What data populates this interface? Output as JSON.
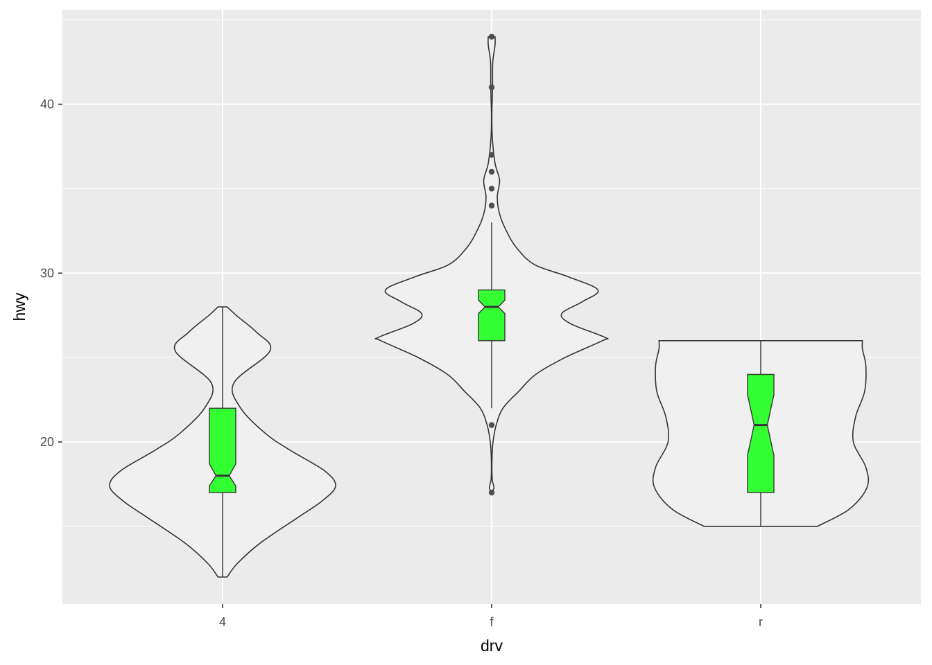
{
  "chart_data": {
    "type": "violin",
    "xlabel": "drv",
    "ylabel": "hwy",
    "categories": [
      "4",
      "f",
      "r"
    ],
    "y_ticks": [
      "20",
      "30",
      "40"
    ],
    "y_tick_values": [
      20,
      30,
      40
    ],
    "ylim": [
      10.4,
      45.6
    ],
    "grid": true,
    "notched_boxplot": true,
    "colors": {
      "panel_background": "#ebebeb",
      "grid": "#ffffff",
      "violin_fill": "#f0f0f0",
      "violin_outline": "#333333",
      "box_fill": "#33ff33",
      "outlier": "#4d4d4d",
      "tick_text": "#4d4d4d",
      "title_text": "#000000"
    },
    "groups": [
      {
        "category": "4",
        "boxplot": {
          "min": 12,
          "q1": 17,
          "median": 18,
          "q3": 22,
          "max": 28,
          "notch_low": 17.4,
          "notch_high": 18.7
        },
        "outliers": [],
        "violin_width_profile": [
          [
            12,
            0.04
          ],
          [
            12.8,
            0.13
          ],
          [
            14,
            0.33
          ],
          [
            15.5,
            0.66
          ],
          [
            16.5,
            0.88
          ],
          [
            17.4,
            1.0
          ],
          [
            18.3,
            0.9
          ],
          [
            19.5,
            0.6
          ],
          [
            20.5,
            0.38
          ],
          [
            22,
            0.16
          ],
          [
            23.5,
            0.1
          ],
          [
            25.4,
            0.42
          ],
          [
            26.5,
            0.3
          ],
          [
            27.5,
            0.12
          ],
          [
            28,
            0.04
          ]
        ]
      },
      {
        "category": "f",
        "boxplot": {
          "min": 21,
          "q1": 26,
          "median": 28,
          "q3": 29,
          "max": 33,
          "notch_low": 27.6,
          "notch_high": 28.4
        },
        "whisker_low_end": 22,
        "outliers": [
          17,
          21,
          34,
          35,
          36,
          37,
          41,
          44
        ],
        "violin_width_profile": [
          [
            17,
            0.0
          ],
          [
            17.3,
            0.02
          ],
          [
            17.8,
            0.005
          ],
          [
            19,
            0.003
          ],
          [
            20,
            0.012
          ],
          [
            21,
            0.04
          ],
          [
            22,
            0.1
          ],
          [
            23,
            0.24
          ],
          [
            24,
            0.39
          ],
          [
            25,
            0.65
          ],
          [
            26,
            0.98
          ],
          [
            26.2,
            1.0
          ],
          [
            27,
            0.7
          ],
          [
            27.6,
            0.62
          ],
          [
            28.3,
            0.8
          ],
          [
            29,
            0.94
          ],
          [
            29.8,
            0.67
          ],
          [
            30.5,
            0.38
          ],
          [
            31.5,
            0.22
          ],
          [
            32.5,
            0.13
          ],
          [
            33.5,
            0.07
          ],
          [
            34.5,
            0.05
          ],
          [
            35.5,
            0.07
          ],
          [
            36.5,
            0.03
          ],
          [
            38,
            0.006
          ],
          [
            39.4,
            0.002
          ],
          [
            41,
            0.008
          ],
          [
            42.5,
            0.01
          ],
          [
            43.5,
            0.03
          ],
          [
            44,
            0.03
          ]
        ]
      },
      {
        "category": "r",
        "boxplot": {
          "min": 15,
          "q1": 17,
          "median": 21,
          "q3": 24,
          "max": 26,
          "notch_low": 19.2,
          "notch_high": 22.8
        },
        "outliers": [],
        "violin_width_profile": [
          [
            15,
            0.5
          ],
          [
            16,
            0.78
          ],
          [
            17.3,
            0.94
          ],
          [
            18.5,
            0.93
          ],
          [
            20,
            0.82
          ],
          [
            21.5,
            0.84
          ],
          [
            23,
            0.92
          ],
          [
            24.5,
            0.93
          ],
          [
            25.5,
            0.9
          ],
          [
            26,
            0.9
          ]
        ]
      }
    ]
  }
}
